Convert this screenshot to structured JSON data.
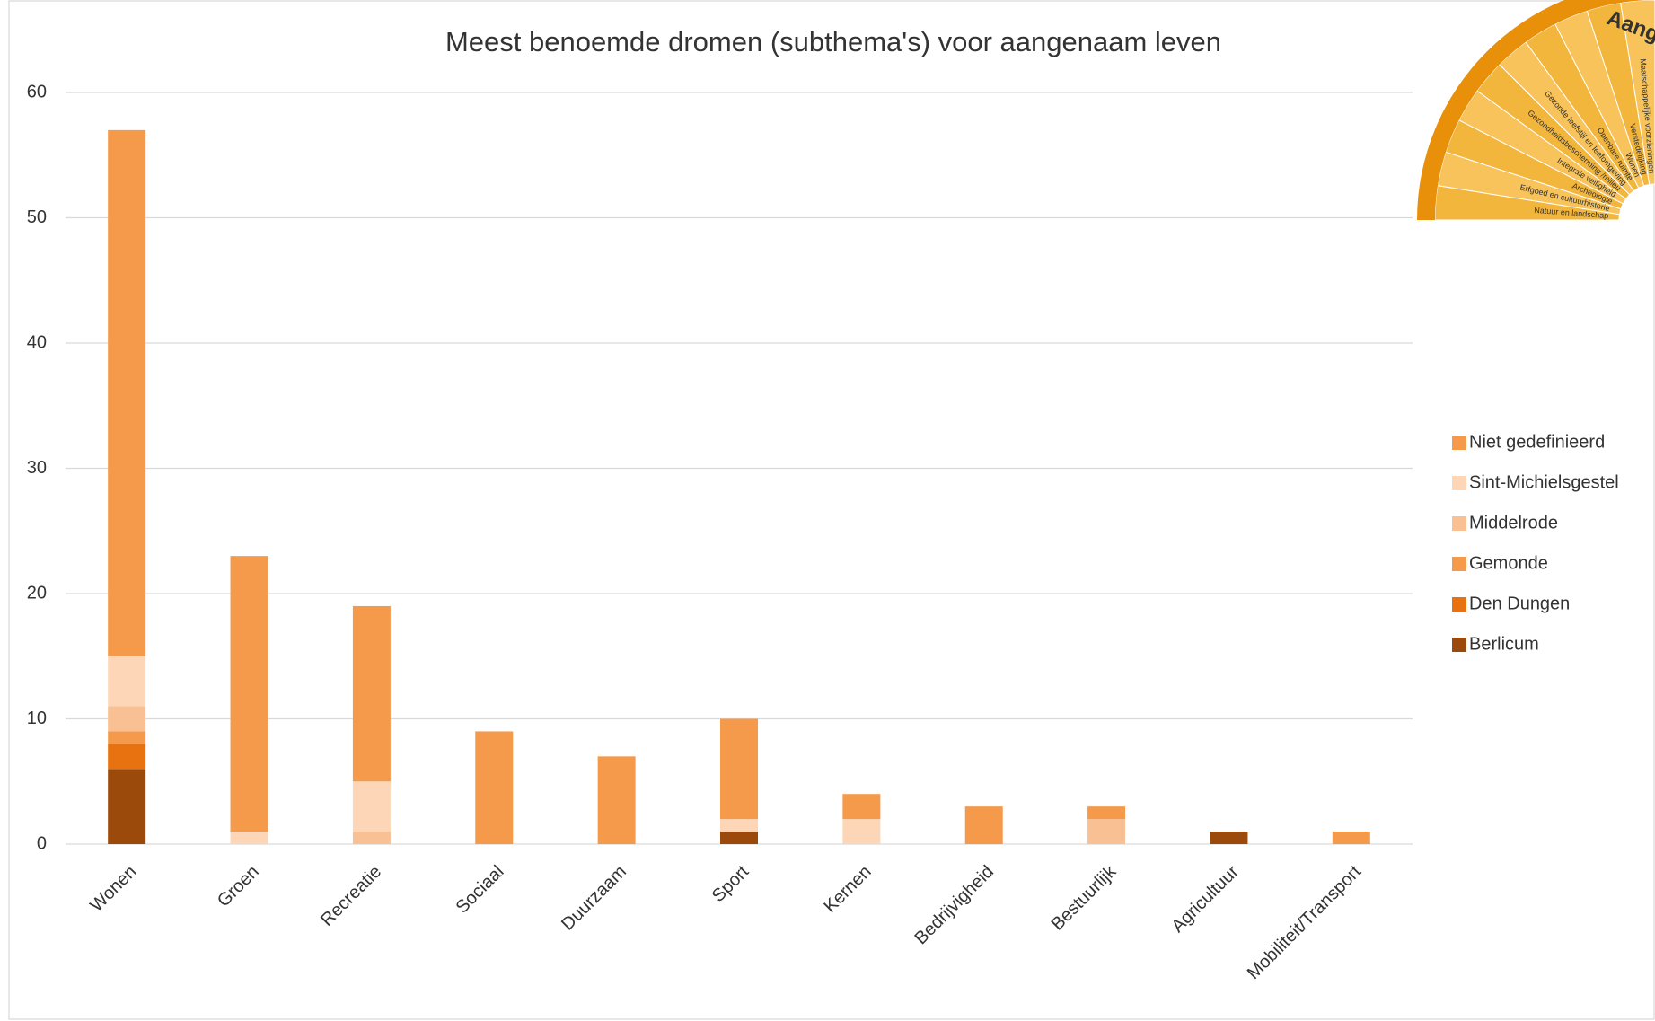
{
  "chart_data": {
    "type": "stacked_bar",
    "title": "Meest benoemde dromen (subthema's) voor aangenaam leven",
    "categories": [
      "Wonen",
      "Groen",
      "Recreatie",
      "Sociaal",
      "Duurzaam",
      "Sport",
      "Kernen",
      "Bedrijvigheid",
      "Bestuurlijk",
      "Agricultuur",
      "Mobiliteit/Transport"
    ],
    "series": [
      {
        "name": "Berlicum",
        "color": "#9c4a0c",
        "values": [
          6,
          0,
          0,
          0,
          0,
          1,
          0,
          0,
          0,
          1,
          0
        ]
      },
      {
        "name": "Den Dungen",
        "color": "#e8720f",
        "values": [
          2,
          0,
          0,
          0,
          0,
          0,
          0,
          0,
          0,
          0,
          0
        ]
      },
      {
        "name": "Gemonde",
        "color": "#f5994b",
        "values": [
          1,
          0,
          0,
          0,
          0,
          0,
          0,
          0,
          0,
          0,
          0
        ]
      },
      {
        "name": "Middelrode",
        "color": "#f9c093",
        "values": [
          2,
          0,
          1,
          0,
          0,
          0,
          0,
          0,
          2,
          0,
          0
        ]
      },
      {
        "name": "Sint-Michielsgestel",
        "color": "#fcd6b6",
        "values": [
          4,
          1,
          4,
          0,
          0,
          1,
          2,
          0,
          0,
          0,
          0
        ]
      },
      {
        "name": "Niet gedefinieerd",
        "color": "#f5994b",
        "values": [
          42,
          22,
          14,
          9,
          7,
          8,
          2,
          3,
          1,
          0,
          1
        ]
      }
    ],
    "ylim": [
      0,
      60
    ],
    "yticks": [
      0,
      10,
      20,
      30,
      40,
      50,
      60
    ],
    "grid": true,
    "legend": "right",
    "logo": {
      "title": "Aangenaam leven",
      "sectors": [
        "Natuur en landschap",
        "Erfgoed en cultuurhistorie",
        "Archeologie",
        "Integrale veiligheid",
        "Gezondheidsbescherming /milieu",
        "Gezonde leefstijl en leefomgeving",
        "Openbare ruimte",
        "Wonen",
        "Verstedelijking",
        "Maatschappelijke voorzieningen"
      ]
    }
  }
}
